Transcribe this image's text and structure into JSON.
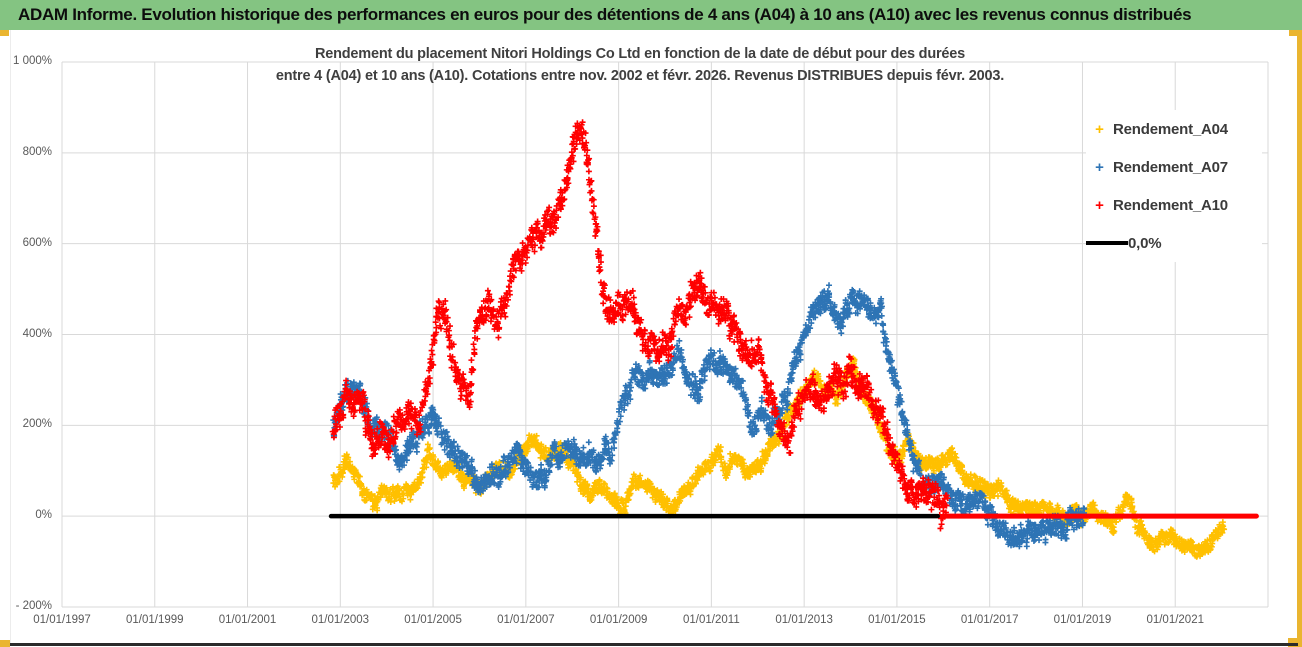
{
  "header": {
    "title": "ADAM Informe. Evolution historique des performances en euros pour des détentions de 4 ans (A04) à 10 ans (A10) avec les revenus connus distribués"
  },
  "chart": {
    "title_line1": "Rendement du placement Nitori Holdings Co Ltd en fonction de la date de début pour des durées",
    "title_line2": "entre 4 (A04) et 10 ans (A10). Cotations entre nov. 2002 et févr. 2026. Revenus DISTRIBUES depuis févr. 2003."
  },
  "legend": {
    "items": [
      {
        "label": "Rendement_A04",
        "marker": "+",
        "color": "#FFC000"
      },
      {
        "label": "Rendement_A07",
        "marker": "+",
        "color": "#2E74B5"
      },
      {
        "label": "Rendement_A10",
        "marker": "+",
        "color": "#FF0000"
      },
      {
        "label": "0,0%",
        "marker": "line",
        "color": "#000000"
      }
    ]
  },
  "colors": {
    "header_green": "#84c482",
    "gold_frame": "#eab530",
    "grid": "#d9d9d9",
    "axis_text": "#595959",
    "title_text": "#3f3f3f",
    "series_a04": "#FFC000",
    "series_a07": "#2E74B5",
    "series_a10": "#FF0000",
    "zero_line": "#000000"
  },
  "chart_data": {
    "type": "scatter",
    "title": "Rendement du placement Nitori Holdings Co Ltd en fonction de la date de début pour des durées entre 4 (A04) et 10 ans (A10). Cotations entre nov. 2002 et févr. 2026. Revenus DISTRIBUES depuis févr. 2003.",
    "unit": "%",
    "grid": true,
    "legend_position": "right",
    "x_axis": {
      "ticks": [
        "01/01/1997",
        "01/01/1999",
        "01/01/2001",
        "01/01/2003",
        "01/01/2005",
        "01/01/2007",
        "01/01/2009",
        "01/01/2011",
        "01/01/2013",
        "01/01/2015",
        "01/01/2017",
        "01/01/2019",
        "01/01/2021"
      ],
      "tick_years": [
        1997,
        1999,
        2001,
        2003,
        2005,
        2007,
        2009,
        2011,
        2013,
        2015,
        2017,
        2019,
        2021
      ],
      "range_years": [
        1997,
        2023
      ],
      "grid_step_years": 2
    },
    "y_axis": {
      "ticks": [
        "1 000%",
        "800%",
        "600%",
        "400%",
        "200%",
        "0%",
        "- 200%"
      ],
      "tick_values": [
        1000,
        800,
        600,
        400,
        200,
        0,
        -200
      ],
      "range": [
        -200,
        1000
      ]
    },
    "note": "Dense daily point clouds; anchors are estimated [decimal_year, percent] trend points read from the plot, band = local vertical spread in %.",
    "series": [
      {
        "name": "Rendement_A04",
        "color": "#FFC000",
        "marker": "+",
        "start": 2002.85,
        "end": 2022.05,
        "band": 26,
        "anchors": [
          [
            2002.85,
            80
          ],
          [
            2003.0,
            105
          ],
          [
            2003.15,
            125
          ],
          [
            2003.3,
            90
          ],
          [
            2003.5,
            55
          ],
          [
            2003.7,
            25
          ],
          [
            2003.9,
            55
          ],
          [
            2004.1,
            50
          ],
          [
            2004.3,
            40
          ],
          [
            2004.5,
            55
          ],
          [
            2004.7,
            85
          ],
          [
            2004.9,
            180
          ],
          [
            2005.05,
            120
          ],
          [
            2005.2,
            85
          ],
          [
            2005.4,
            100
          ],
          [
            2005.6,
            80
          ],
          [
            2005.8,
            80
          ],
          [
            2006.0,
            65
          ],
          [
            2006.2,
            90
          ],
          [
            2006.4,
            110
          ],
          [
            2006.6,
            100
          ],
          [
            2006.8,
            120
          ],
          [
            2007.0,
            140
          ],
          [
            2007.2,
            165
          ],
          [
            2007.4,
            140
          ],
          [
            2007.6,
            150
          ],
          [
            2007.8,
            160
          ],
          [
            2008.0,
            120
          ],
          [
            2008.2,
            75
          ],
          [
            2008.4,
            65
          ],
          [
            2008.6,
            90
          ],
          [
            2008.8,
            40
          ],
          [
            2009.0,
            20
          ],
          [
            2009.2,
            45
          ],
          [
            2009.35,
            70
          ],
          [
            2009.5,
            60
          ],
          [
            2009.7,
            55
          ],
          [
            2009.9,
            45
          ],
          [
            2010.15,
            15
          ],
          [
            2010.4,
            45
          ],
          [
            2010.6,
            70
          ],
          [
            2010.8,
            95
          ],
          [
            2011.0,
            130
          ],
          [
            2011.15,
            150
          ],
          [
            2011.3,
            120
          ],
          [
            2011.5,
            130
          ],
          [
            2011.7,
            100
          ],
          [
            2011.9,
            110
          ],
          [
            2012.1,
            130
          ],
          [
            2012.3,
            150
          ],
          [
            2012.5,
            175
          ],
          [
            2012.7,
            220
          ],
          [
            2012.9,
            260
          ],
          [
            2013.1,
            290
          ],
          [
            2013.3,
            310
          ],
          [
            2013.5,
            280
          ],
          [
            2013.7,
            265
          ],
          [
            2013.9,
            320
          ],
          [
            2014.05,
            340
          ],
          [
            2014.2,
            290
          ],
          [
            2014.4,
            250
          ],
          [
            2014.6,
            180
          ],
          [
            2014.8,
            140
          ],
          [
            2015.0,
            120
          ],
          [
            2015.25,
            150
          ],
          [
            2015.45,
            110
          ],
          [
            2015.65,
            100
          ],
          [
            2015.85,
            120
          ],
          [
            2016.05,
            115
          ],
          [
            2016.25,
            135
          ],
          [
            2016.45,
            90
          ],
          [
            2016.65,
            70
          ],
          [
            2016.85,
            80
          ],
          [
            2017.05,
            65
          ],
          [
            2017.25,
            70
          ],
          [
            2017.45,
            30
          ],
          [
            2017.65,
            20
          ],
          [
            2017.85,
            35
          ],
          [
            2018.05,
            10
          ],
          [
            2018.25,
            -15
          ],
          [
            2018.45,
            -5
          ],
          [
            2018.65,
            -15
          ],
          [
            2018.85,
            5
          ],
          [
            2019.05,
            10
          ],
          [
            2019.25,
            30
          ],
          [
            2019.45,
            5
          ],
          [
            2019.65,
            -10
          ],
          [
            2019.85,
            15
          ],
          [
            2019.98,
            40
          ],
          [
            2020.15,
            -15
          ],
          [
            2020.35,
            -35
          ],
          [
            2020.55,
            -45
          ],
          [
            2020.75,
            -35
          ],
          [
            2020.95,
            -40
          ],
          [
            2021.15,
            -50
          ],
          [
            2021.35,
            -60
          ],
          [
            2021.55,
            -55
          ],
          [
            2021.75,
            -50
          ],
          [
            2021.9,
            -38
          ],
          [
            2022.05,
            -28
          ]
        ]
      },
      {
        "name": "Rendement_A07",
        "color": "#2E74B5",
        "marker": "+",
        "start": 2002.85,
        "end": 2019.05,
        "band": 38,
        "anchors": [
          [
            2002.85,
            190
          ],
          [
            2003.05,
            240
          ],
          [
            2003.25,
            310
          ],
          [
            2003.45,
            260
          ],
          [
            2003.65,
            200
          ],
          [
            2003.85,
            170
          ],
          [
            2004.05,
            165
          ],
          [
            2004.3,
            125
          ],
          [
            2004.55,
            160
          ],
          [
            2004.8,
            180
          ],
          [
            2005.0,
            215
          ],
          [
            2005.25,
            180
          ],
          [
            2005.5,
            160
          ],
          [
            2005.75,
            95
          ],
          [
            2006.0,
            35
          ],
          [
            2006.25,
            65
          ],
          [
            2006.5,
            120
          ],
          [
            2006.75,
            150
          ],
          [
            2007.0,
            135
          ],
          [
            2007.25,
            100
          ],
          [
            2007.5,
            115
          ],
          [
            2007.75,
            130
          ],
          [
            2008.0,
            150
          ],
          [
            2008.25,
            125
          ],
          [
            2008.5,
            95
          ],
          [
            2008.7,
            130
          ],
          [
            2008.9,
            175
          ],
          [
            2009.1,
            255
          ],
          [
            2009.3,
            310
          ],
          [
            2009.5,
            295
          ],
          [
            2009.7,
            320
          ],
          [
            2009.9,
            300
          ],
          [
            2010.1,
            330
          ],
          [
            2010.3,
            350
          ],
          [
            2010.5,
            300
          ],
          [
            2010.7,
            295
          ],
          [
            2010.9,
            320
          ],
          [
            2011.1,
            310
          ],
          [
            2011.3,
            330
          ],
          [
            2011.5,
            280
          ],
          [
            2011.7,
            250
          ],
          [
            2011.9,
            215
          ],
          [
            2012.1,
            250
          ],
          [
            2012.3,
            225
          ],
          [
            2012.5,
            240
          ],
          [
            2012.7,
            290
          ],
          [
            2012.9,
            380
          ],
          [
            2013.1,
            420
          ],
          [
            2013.3,
            465
          ],
          [
            2013.5,
            480
          ],
          [
            2013.7,
            440
          ],
          [
            2013.9,
            460
          ],
          [
            2014.1,
            455
          ],
          [
            2014.3,
            440
          ],
          [
            2014.5,
            420
          ],
          [
            2014.65,
            430
          ],
          [
            2014.8,
            330
          ],
          [
            2015.0,
            250
          ],
          [
            2015.2,
            190
          ],
          [
            2015.4,
            120
          ],
          [
            2015.6,
            80
          ],
          [
            2015.8,
            75
          ],
          [
            2016.0,
            90
          ],
          [
            2016.2,
            70
          ],
          [
            2016.4,
            50
          ],
          [
            2016.6,
            60
          ],
          [
            2016.8,
            40
          ],
          [
            2017.0,
            15
          ],
          [
            2017.2,
            -20
          ],
          [
            2017.4,
            -45
          ],
          [
            2017.6,
            -35
          ],
          [
            2017.8,
            -40
          ],
          [
            2018.0,
            -40
          ],
          [
            2018.2,
            -28
          ],
          [
            2018.4,
            -40
          ],
          [
            2018.6,
            -48
          ],
          [
            2018.8,
            -38
          ],
          [
            2019.05,
            -28
          ]
        ]
      },
      {
        "name": "Rendement_A10",
        "color": "#FF0000",
        "marker": "+",
        "start": 2002.85,
        "end": 2016.1,
        "band": 50,
        "anchors": [
          [
            2002.85,
            215
          ],
          [
            2003.1,
            250
          ],
          [
            2003.4,
            270
          ],
          [
            2003.7,
            195
          ],
          [
            2003.95,
            150
          ],
          [
            2004.2,
            200
          ],
          [
            2004.45,
            230
          ],
          [
            2004.7,
            185
          ],
          [
            2004.95,
            330
          ],
          [
            2005.1,
            420
          ],
          [
            2005.25,
            455
          ],
          [
            2005.4,
            380
          ],
          [
            2005.6,
            290
          ],
          [
            2005.8,
            315
          ],
          [
            2006.0,
            420
          ],
          [
            2006.2,
            465
          ],
          [
            2006.4,
            425
          ],
          [
            2006.6,
            480
          ],
          [
            2006.8,
            555
          ],
          [
            2007.0,
            575
          ],
          [
            2007.2,
            625
          ],
          [
            2007.4,
            655
          ],
          [
            2007.6,
            690
          ],
          [
            2007.8,
            705
          ],
          [
            2008.0,
            780
          ],
          [
            2008.15,
            835
          ],
          [
            2008.3,
            805
          ],
          [
            2008.45,
            650
          ],
          [
            2008.6,
            560
          ],
          [
            2008.75,
            470
          ],
          [
            2008.95,
            440
          ],
          [
            2009.15,
            450
          ],
          [
            2009.35,
            395
          ],
          [
            2009.55,
            370
          ],
          [
            2009.75,
            355
          ],
          [
            2009.9,
            345
          ],
          [
            2010.1,
            430
          ],
          [
            2010.3,
            455
          ],
          [
            2010.5,
            480
          ],
          [
            2010.65,
            530
          ],
          [
            2010.8,
            505
          ],
          [
            2010.95,
            465
          ],
          [
            2011.15,
            450
          ],
          [
            2011.35,
            455
          ],
          [
            2011.55,
            400
          ],
          [
            2011.75,
            380
          ],
          [
            2011.95,
            345
          ],
          [
            2012.15,
            300
          ],
          [
            2012.35,
            245
          ],
          [
            2012.55,
            175
          ],
          [
            2012.68,
            140
          ],
          [
            2012.85,
            210
          ],
          [
            2013.05,
            290
          ],
          [
            2013.25,
            285
          ],
          [
            2013.45,
            250
          ],
          [
            2013.65,
            300
          ],
          [
            2013.85,
            290
          ],
          [
            2014.0,
            330
          ],
          [
            2014.2,
            305
          ],
          [
            2014.4,
            245
          ],
          [
            2014.6,
            190
          ],
          [
            2014.8,
            170
          ],
          [
            2015.0,
            100
          ],
          [
            2015.2,
            60
          ],
          [
            2015.4,
            35
          ],
          [
            2015.6,
            28
          ],
          [
            2015.8,
            48
          ],
          [
            2015.95,
            28
          ],
          [
            2016.1,
            12
          ]
        ]
      }
    ],
    "zero_lines": [
      {
        "color": "#000000",
        "width": 4.5,
        "value": 0,
        "from_year": 2002.8,
        "to_year": 2015.88
      },
      {
        "color": "#FF0000",
        "width": 5,
        "value": 0,
        "from_year": 2016.0,
        "to_year": 2022.75
      }
    ]
  }
}
